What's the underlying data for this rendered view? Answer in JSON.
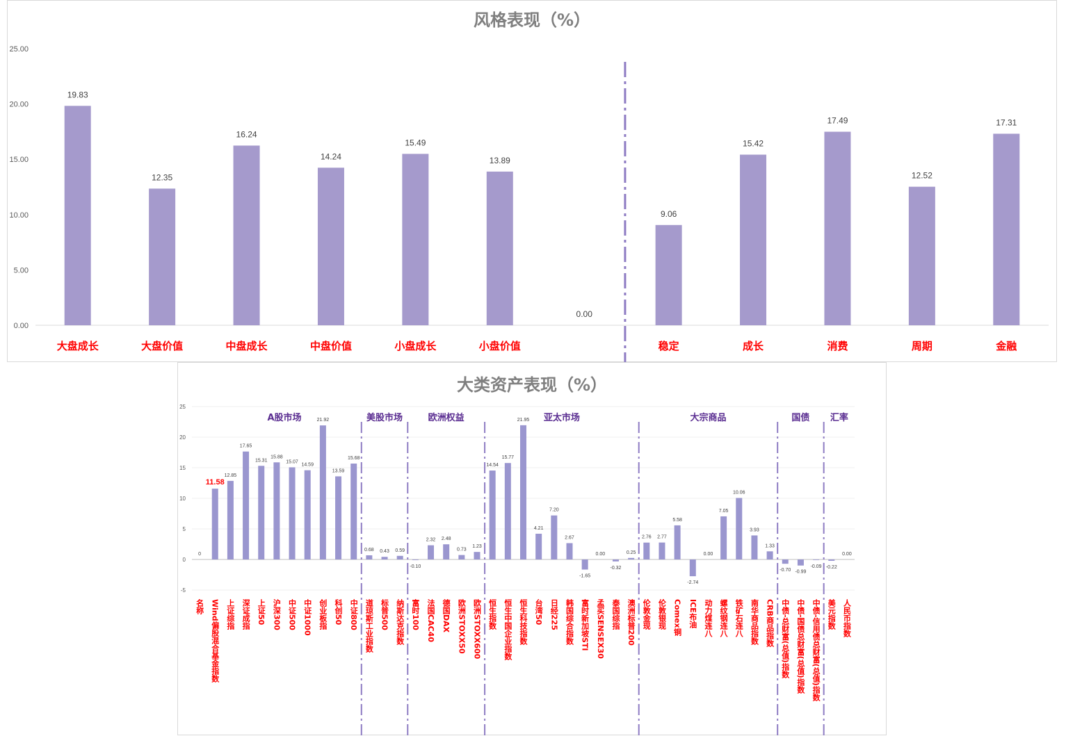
{
  "colors": {
    "bar": "#a59acc",
    "bar_bottom": "#9a96cf",
    "category_label": "#ff0000",
    "group_label": "#5a2d91",
    "divider": "#8e7cc3",
    "axis_text": "#595959",
    "title": "#7f7f7f"
  },
  "chart_data": [
    {
      "type": "bar",
      "title": "风格表现（%）",
      "categories": [
        "大盘成长",
        "大盘价值",
        "中盘成长",
        "中盘价值",
        "小盘成长",
        "小盘价值",
        "",
        "稳定",
        "成长",
        "消费",
        "周期",
        "金融"
      ],
      "values": [
        19.83,
        12.35,
        16.24,
        14.24,
        15.49,
        13.89,
        0.0,
        9.06,
        15.42,
        17.49,
        12.52,
        17.31
      ],
      "value_labels": [
        "19.83",
        "12.35",
        "16.24",
        "14.24",
        "15.49",
        "13.89",
        "0.00",
        "9.06",
        "15.42",
        "17.49",
        "12.52",
        "17.31"
      ],
      "y_ticks": [
        "0.00",
        "5.00",
        "10.00",
        "15.00",
        "20.00",
        "25.00"
      ],
      "ylim": [
        0,
        25
      ],
      "grid": false,
      "divider_after_index": 6
    },
    {
      "type": "bar",
      "title": "大类资产表现（%）",
      "categories": [
        "名称",
        "Wind偏股混合基金指数",
        "上证综指",
        "深证成指",
        "上证50",
        "沪深300",
        "中证500",
        "中证1000",
        "创业板指",
        "科创50",
        "中证800",
        "道琼斯工业指数",
        "标普500",
        "纳斯达克指数",
        "富时100",
        "法国CAC40",
        "德国DAX",
        "欧洲STOXX50",
        "欧洲STOXX600",
        "恒生指数",
        "恒生中国企业指数",
        "恒生科技指数",
        "台湾50",
        "日经225",
        "韩国综合指数",
        "富时新加坡STI",
        "孟买SENSEX30",
        "泰国综指",
        "澳洲标普200",
        "伦敦金现",
        "伦敦银现",
        "Comex铜",
        "ICE布油",
        "动力煤连八",
        "螺纹钢连八",
        "铁矿石连八",
        "南华商品指数",
        "CRB商品指数",
        "中债-总财富(总值)指数",
        "中债-国债总财富(总值)指数",
        "中债-信用债总财富(总值)指数",
        "美元指数",
        "人民币指数"
      ],
      "values": [
        0,
        11.58,
        12.85,
        17.65,
        15.31,
        15.88,
        15.07,
        14.59,
        21.92,
        13.59,
        15.68,
        0.68,
        0.43,
        0.59,
        -0.1,
        2.32,
        2.48,
        0.73,
        1.23,
        14.54,
        15.77,
        21.95,
        4.21,
        7.2,
        2.67,
        -1.65,
        0.0,
        -0.32,
        0.25,
        2.76,
        2.77,
        5.58,
        -2.74,
        0.0,
        7.05,
        10.06,
        3.93,
        1.33,
        -0.7,
        -0.99,
        -0.09,
        -0.22,
        0.0
      ],
      "value_labels": [
        "0",
        "11.58",
        "12.85",
        "17.65",
        "15.31",
        "15.88",
        "15.07",
        "14.59",
        "21.92",
        "13.59",
        "15.68",
        "0.68",
        "0.43",
        "0.59",
        "-0.10",
        "2.32",
        "2.48",
        "0.73",
        "1.23",
        "14.54",
        "15.77",
        "21.95",
        "4.21",
        "7.20",
        "2.67",
        "-1.65",
        "0.00",
        "-0.32",
        "0.25",
        "2.76",
        "2.77",
        "5.58",
        "-2.74",
        "0.00",
        "7.05",
        "10.06",
        "3.93",
        "1.33",
        "-0.70",
        "-0.99",
        "-0.09",
        "-0.22",
        "0.00"
      ],
      "highlight_index": 1,
      "y_ticks": [
        "-5",
        "0",
        "5",
        "10",
        "15",
        "20",
        "25"
      ],
      "ylim": [
        -5,
        25
      ],
      "grid": true,
      "groups": [
        {
          "label": "A股市场",
          "start": 1,
          "end": 10
        },
        {
          "label": "美股市场",
          "start": 11,
          "end": 13
        },
        {
          "label": "欧洲权益",
          "start": 14,
          "end": 18
        },
        {
          "label": "亚太市场",
          "start": 19,
          "end": 28
        },
        {
          "label": "大宗商品",
          "start": 29,
          "end": 37
        },
        {
          "label": "国债",
          "start": 38,
          "end": 40
        },
        {
          "label": "汇率",
          "start": 41,
          "end": 42
        }
      ],
      "divider_after_indices": [
        10,
        13,
        18,
        28,
        37,
        40
      ]
    }
  ]
}
